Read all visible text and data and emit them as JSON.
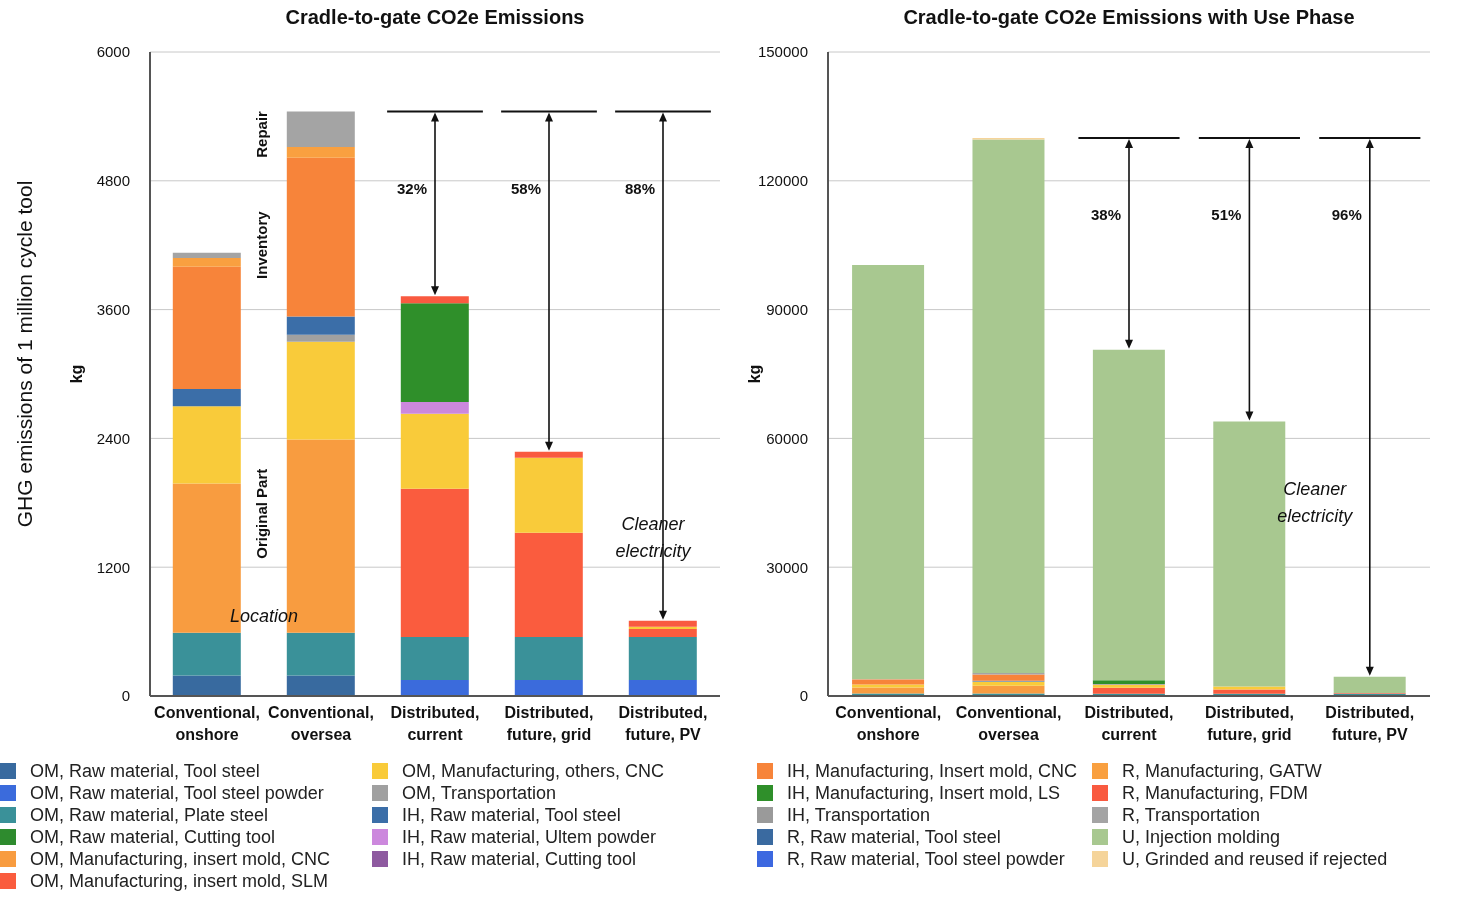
{
  "chart_data": [
    {
      "type": "bar",
      "stacked": true,
      "title": "Cradle-to-gate CO2e Emissions",
      "ylabel": "kg",
      "categories": [
        "Conventional, onshore",
        "Conventional, oversea",
        "Distributed, current",
        "Distributed, future, grid",
        "Distributed, future, PV"
      ],
      "ylim": [
        0,
        6000
      ],
      "yticks": [
        0,
        1200,
        2400,
        3600,
        4800,
        6000
      ],
      "grid": "y",
      "series": [
        {
          "color": "#386a9f",
          "values": [
            190,
            190,
            null,
            null,
            null
          ]
        },
        {
          "color": "#3b6bdc",
          "values": [
            null,
            null,
            150,
            150,
            150
          ]
        },
        {
          "color": "#3a9199",
          "values": [
            400,
            400,
            400,
            400,
            400
          ]
        },
        {
          "color": "#2e8b2e",
          "values": [
            null,
            null,
            null,
            null,
            null
          ]
        },
        {
          "color": "#f89c40",
          "values": [
            1390,
            1800,
            null,
            null,
            null
          ]
        },
        {
          "color": "#fa5c3e",
          "values": [
            null,
            null,
            1380,
            970,
            75
          ]
        },
        {
          "color": "#f9cb3a",
          "values": [
            720,
            910,
            700,
            700,
            20
          ]
        },
        {
          "color": "#a0a0a0",
          "values": [
            null,
            65,
            null,
            null,
            null
          ]
        },
        {
          "color": "#3b6ea8",
          "values": [
            160,
            170,
            null,
            null,
            null
          ]
        },
        {
          "color": "#cc88dd",
          "values": [
            null,
            null,
            110,
            null,
            null
          ]
        },
        {
          "color": "#8e5aa0",
          "values": [
            null,
            null,
            null,
            null,
            null
          ]
        },
        {
          "color": "#f7843a",
          "values": [
            1140,
            1480,
            null,
            null,
            null
          ]
        },
        {
          "color": "#2f8f2a",
          "values": [
            null,
            null,
            920,
            null,
            null
          ]
        },
        {
          "color": "#9a9a9a",
          "values": [
            null,
            null,
            null,
            null,
            null
          ]
        },
        {
          "color": "#3a6aa0",
          "values": [
            null,
            null,
            null,
            null,
            null
          ]
        },
        {
          "color": "#3c68e0",
          "values": [
            null,
            null,
            null,
            null,
            null
          ]
        },
        {
          "color": "#f9a040",
          "values": [
            80,
            100,
            null,
            null,
            null
          ]
        },
        {
          "color": "#f95a40",
          "values": [
            null,
            null,
            65,
            55,
            55
          ]
        },
        {
          "color": "#a4a4a4",
          "values": [
            50,
            330,
            null,
            null,
            null
          ]
        }
      ],
      "annotations": [
        "Repair",
        "Inventory",
        "Original Part",
        "GHG emissions of 1 million cycle tool",
        "Location",
        "32%",
        "58%",
        "88%",
        "Cleaner electricity"
      ]
    },
    {
      "type": "bar",
      "stacked": true,
      "title": "Cradle-to-gate CO2e Emissions with Use Phase",
      "ylabel": "kg",
      "categories": [
        "Conventional, onshore",
        "Conventional, oversea",
        "Distributed, current",
        "Distributed, future, grid",
        "Distributed, future, PV"
      ],
      "ylim": [
        0,
        150000
      ],
      "yticks": [
        0,
        30000,
        60000,
        90000,
        120000,
        150000
      ],
      "grid": "y",
      "legend": "bottom",
      "series": [
        {
          "name": "OM, Raw material, Tool steel",
          "color": "#386a9f",
          "values": [
            190,
            190,
            null,
            null,
            null
          ]
        },
        {
          "name": "OM, Raw material, Tool steel powder",
          "color": "#3b6bdc",
          "values": [
            null,
            null,
            150,
            150,
            150
          ]
        },
        {
          "name": "OM, Raw material, Plate steel",
          "color": "#3a9199",
          "values": [
            400,
            400,
            400,
            400,
            400
          ]
        },
        {
          "name": "OM, Raw material, Cutting tool",
          "color": "#2e8b2e",
          "values": [
            null,
            null,
            null,
            null,
            null
          ]
        },
        {
          "name": "OM, Manufacturing, insert mold, CNC",
          "color": "#f89c40",
          "values": [
            1390,
            1800,
            null,
            null,
            null
          ]
        },
        {
          "name": "OM, Manufacturing, insert mold, SLM",
          "color": "#fa5c3e",
          "values": [
            null,
            null,
            1380,
            970,
            75
          ]
        },
        {
          "name": "OM, Manufacturing, others, CNC",
          "color": "#f9cb3a",
          "values": [
            720,
            910,
            700,
            700,
            20
          ]
        },
        {
          "name": "OM, Transportation",
          "color": "#a0a0a0",
          "values": [
            null,
            65,
            null,
            null,
            null
          ]
        },
        {
          "name": "IH, Raw material, Tool steel",
          "color": "#3b6ea8",
          "values": [
            null,
            170,
            null,
            null,
            null
          ]
        },
        {
          "name": "IH, Raw material, Ultem powder",
          "color": "#cc88dd",
          "values": [
            null,
            null,
            110,
            null,
            null
          ]
        },
        {
          "name": "IH, Raw material, Cutting tool",
          "color": "#8e5aa0",
          "values": [
            null,
            null,
            null,
            null,
            null
          ]
        },
        {
          "name": "IH, Manufacturing, Insert mold, CNC",
          "color": "#f7843a",
          "values": [
            1140,
            1480,
            null,
            null,
            null
          ]
        },
        {
          "name": "IH, Manufacturing, Insert mold, LS",
          "color": "#2f8f2a",
          "values": [
            null,
            null,
            920,
            null,
            null
          ]
        },
        {
          "name": "IH, Transportation",
          "color": "#9a9a9a",
          "values": [
            null,
            null,
            null,
            null,
            null
          ]
        },
        {
          "name": "R, Raw material, Tool steel",
          "color": "#3a6aa0",
          "values": [
            null,
            null,
            null,
            null,
            null
          ]
        },
        {
          "name": "R, Raw material, Tool steel powder",
          "color": "#3c68e0",
          "values": [
            null,
            null,
            null,
            null,
            null
          ]
        },
        {
          "name": "R, Manufacturing, GATW",
          "color": "#f9a040",
          "values": [
            80,
            null,
            null,
            null,
            null
          ]
        },
        {
          "name": "R, Manufacturing, FDM",
          "color": "#f95a40",
          "values": [
            null,
            null,
            null,
            null,
            55
          ]
        },
        {
          "name": "R, Transportation",
          "color": "#a4a4a4",
          "values": [
            50,
            330,
            null,
            null,
            null
          ]
        },
        {
          "name": "U, Injection molding",
          "color": "#a8c890",
          "values": [
            96400,
            124300,
            77000,
            61700,
            3800
          ]
        },
        {
          "name": "U, Grinded and reused if rejected",
          "color": "#f5d49a",
          "values": [
            null,
            300,
            null,
            null,
            null
          ]
        }
      ],
      "annotations": [
        "38%",
        "51%",
        "96%",
        "Cleaner electricity"
      ]
    }
  ]
}
